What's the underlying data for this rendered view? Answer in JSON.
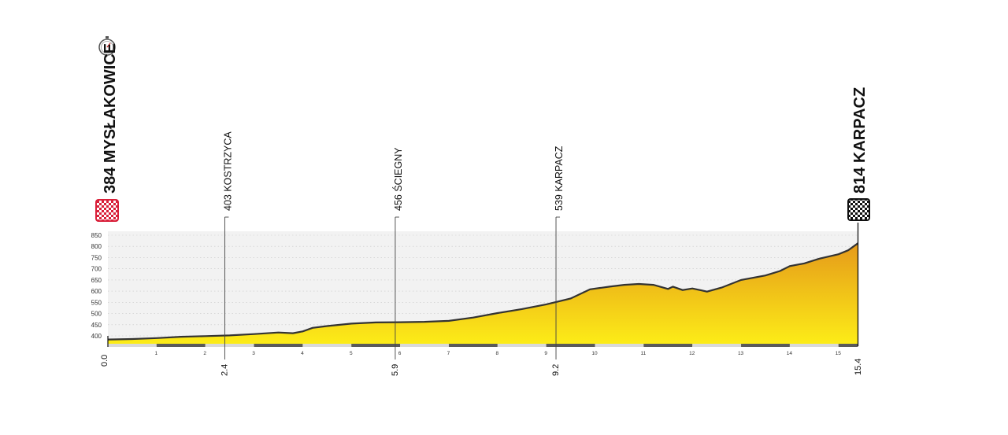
{
  "chart_data": {
    "type": "area",
    "title": "",
    "xlabel": "",
    "ylabel": "",
    "xlim": [
      0,
      15.4
    ],
    "ylim": [
      350,
      870
    ],
    "yticks": [
      400,
      450,
      500,
      550,
      600,
      650,
      700,
      750,
      800,
      850
    ],
    "xticks": [
      1,
      2,
      3,
      4,
      5,
      6,
      7,
      8,
      9,
      10,
      11,
      12,
      13,
      14,
      15
    ],
    "grid": true,
    "start": {
      "label": "384 MYSŁAKOWICE",
      "km": "0.0",
      "icon": "stopwatch-icon",
      "flag": "start-flag-icon"
    },
    "finish": {
      "label": "814 KARPACZ",
      "km": "15.4",
      "flag": "finish-flag-icon"
    },
    "waypoints": [
      {
        "label": "403 KOSTRZYCA",
        "km": "2.4",
        "x": 2.4
      },
      {
        "label": "456 ŚCIEGNY",
        "km": "5.9",
        "x": 5.9
      },
      {
        "label": "539 KARPACZ",
        "km": "9.2",
        "x": 9.2
      }
    ],
    "profile": {
      "x": [
        0,
        0.5,
        1,
        1.5,
        2,
        2.5,
        3,
        3.5,
        3.8,
        4,
        4.2,
        4.5,
        5,
        5.5,
        6,
        6.5,
        7,
        7.5,
        8,
        8.5,
        9,
        9.5,
        9.9,
        10.3,
        10.6,
        10.9,
        11.2,
        11.5,
        11.6,
        11.8,
        12,
        12.3,
        12.6,
        13,
        13.5,
        13.8,
        14,
        14.3,
        14.6,
        15,
        15.2,
        15.4
      ],
      "y": [
        384,
        386,
        390,
        396,
        399,
        402,
        408,
        415,
        412,
        420,
        436,
        444,
        455,
        460,
        461,
        463,
        467,
        482,
        502,
        520,
        541,
        567,
        608,
        620,
        628,
        632,
        628,
        610,
        620,
        605,
        612,
        598,
        616,
        650,
        670,
        690,
        712,
        724,
        745,
        765,
        783,
        814
      ]
    },
    "colors": {
      "fill_top": "#e59a1a",
      "fill_bottom": "#fdee17",
      "line": "#333333",
      "background": "#f2f2f2",
      "flag_start": "#d9203a"
    }
  }
}
